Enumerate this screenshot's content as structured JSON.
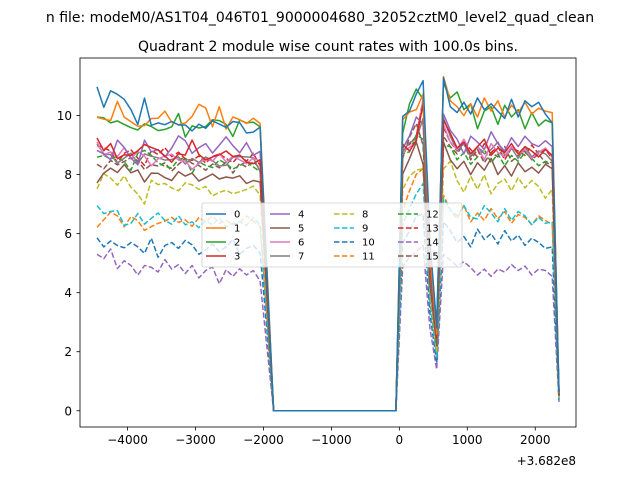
{
  "figure": {
    "suptitle": "n file: modeM0/AS1T04_046T01_9000004680_32052cztM0_level2_quad_clean",
    "offset_text": "+3.682e8"
  },
  "chart_data": {
    "type": "line",
    "title": "Quadrant 2 module wise count rates with 100.0s bins.",
    "xlabel": "",
    "ylabel": "",
    "xlim": [
      -4700,
      2600
    ],
    "ylim": [
      -0.55,
      11.95
    ],
    "xticks": [
      -4000,
      -3000,
      -2000,
      -1000,
      0,
      1000,
      2000
    ],
    "xtick_labels": [
      "−4000",
      "−3000",
      "−2000",
      "−1000",
      "0",
      "1000",
      "2000"
    ],
    "yticks": [
      0,
      2,
      4,
      6,
      8,
      10
    ],
    "ytick_labels": [
      "0",
      "2",
      "4",
      "6",
      "8",
      "10"
    ],
    "x_offset": "+3.682e8",
    "bin_seconds": 100.0,
    "legend": {
      "location": "center",
      "columns": 4
    },
    "x": [
      -4450,
      -4350,
      -4250,
      -4150,
      -4050,
      -3950,
      -3850,
      -3750,
      -3650,
      -3550,
      -3450,
      -3350,
      -3250,
      -3150,
      -3050,
      -2950,
      -2850,
      -2750,
      -2650,
      -2550,
      -2450,
      -2350,
      -2250,
      -2150,
      -2050,
      -1950,
      -1850,
      -150,
      -50,
      50,
      150,
      250,
      350,
      450,
      550,
      650,
      750,
      850,
      950,
      1050,
      1150,
      1250,
      1350,
      1450,
      1550,
      1650,
      1750,
      1850,
      1950,
      2050,
      2150,
      2250,
      2350
    ],
    "series": [
      {
        "name": "0",
        "color": "#1f77b4",
        "dash": "solid",
        "values": [
          10.97,
          10.28,
          10.84,
          10.72,
          10.55,
          10.2,
          9.7,
          10.59,
          9.67,
          9.75,
          9.69,
          9.8,
          9.68,
          9.68,
          9.48,
          9.71,
          9.57,
          9.82,
          9.71,
          9.6,
          9.8,
          9.76,
          9.41,
          9.44,
          9.61,
          4.8,
          0,
          0,
          0,
          9.97,
          10.15,
          10.73,
          11.18,
          5.8,
          2.8,
          11.28,
          10.3,
          10.1,
          10.45,
          10.05,
          10.6,
          10.2,
          10.4,
          10.15,
          9.9,
          10.55,
          9.95,
          10.5,
          10.3,
          10.45,
          10.05,
          9.75,
          0.62
        ]
      },
      {
        "name": "1",
        "color": "#ff7f0e",
        "dash": "solid",
        "values": [
          9.94,
          9.88,
          9.83,
          10.48,
          9.95,
          9.79,
          9.64,
          9.66,
          9.9,
          9.91,
          10.15,
          9.78,
          9.69,
          9.75,
          9.97,
          10.38,
          10.26,
          9.62,
          10.3,
          9.54,
          9.95,
          9.86,
          9.73,
          9.91,
          9.73,
          4.95,
          0,
          0,
          0,
          9.86,
          10.12,
          10.2,
          10.73,
          5.4,
          2.6,
          11.32,
          10.5,
          10.3,
          10.0,
          10.4,
          9.95,
          10.6,
          10.15,
          10.5,
          9.95,
          10.35,
          10.1,
          10.45,
          10.05,
          10.25,
          10.15,
          10.1,
          0.6
        ]
      },
      {
        "name": "2",
        "color": "#2ca02c",
        "dash": "solid",
        "values": [
          9.95,
          9.92,
          9.75,
          9.82,
          9.7,
          9.59,
          9.51,
          9.72,
          9.63,
          9.49,
          9.53,
          9.62,
          10.07,
          9.27,
          9.65,
          9.58,
          9.63,
          9.86,
          9.83,
          9.7,
          9.29,
          9.85,
          9.75,
          9.78,
          9.62,
          4.7,
          0,
          0,
          0,
          9.4,
          10.4,
          10.9,
          10.55,
          5.6,
          2.9,
          11.1,
          10.6,
          10.8,
          10.2,
          10.4,
          9.55,
          10.15,
          10.3,
          9.7,
          10.35,
          9.95,
          10.2,
          9.55,
          10.1,
          9.65,
          9.85,
          9.75,
          0.58
        ]
      },
      {
        "name": "3",
        "color": "#d62728",
        "dash": "solid",
        "values": [
          9.24,
          8.81,
          9.05,
          8.54,
          8.67,
          8.65,
          8.81,
          9.02,
          8.92,
          8.83,
          8.63,
          8.42,
          8.7,
          8.66,
          9.17,
          8.68,
          8.49,
          8.6,
          8.67,
          8.8,
          8.61,
          8.66,
          8.42,
          8.37,
          8.5,
          4.3,
          0,
          0,
          0,
          9.03,
          8.8,
          9.17,
          10.41,
          5.1,
          2.5,
          9.85,
          9.4,
          8.9,
          9.1,
          8.7,
          8.95,
          9.2,
          8.65,
          8.9,
          8.75,
          9.05,
          8.7,
          8.95,
          8.8,
          8.6,
          8.85,
          8.65,
          0.55
        ]
      },
      {
        "name": "4",
        "color": "#9467bd",
        "dash": "solid",
        "values": [
          8.82,
          8.7,
          8.5,
          9.17,
          8.92,
          8.56,
          8.33,
          9.17,
          8.77,
          8.85,
          8.6,
          8.9,
          9.31,
          9.15,
          8.72,
          8.91,
          9.05,
          8.73,
          9.0,
          9.28,
          8.98,
          8.74,
          9.08,
          8.65,
          8.79,
          4.4,
          0,
          0,
          0,
          8.88,
          9.31,
          9.95,
          9.7,
          5.0,
          2.6,
          10.05,
          9.5,
          9.2,
          8.7,
          9.3,
          9.1,
          8.85,
          9.45,
          9.05,
          8.8,
          9.25,
          8.95,
          9.3,
          9.05,
          8.95,
          9.15,
          8.95,
          0.55
        ]
      },
      {
        "name": "5",
        "color": "#8c564b",
        "dash": "solid",
        "values": [
          7.72,
          8.05,
          8.22,
          8.07,
          8.34,
          8.06,
          8.16,
          7.75,
          8.05,
          8.04,
          7.9,
          7.8,
          8.1,
          7.95,
          8.05,
          7.78,
          7.9,
          8.02,
          7.85,
          7.92,
          7.88,
          7.96,
          7.7,
          7.8,
          7.75,
          3.9,
          0,
          0,
          0,
          8.02,
          8.54,
          9.1,
          8.35,
          4.3,
          2.2,
          9.1,
          8.5,
          8.2,
          8.45,
          8.0,
          8.4,
          8.15,
          8.55,
          8.0,
          8.3,
          7.95,
          8.4,
          8.1,
          8.25,
          8.05,
          8.35,
          8.2,
          0.5
        ]
      },
      {
        "name": "6",
        "color": "#e377c2",
        "dash": "solid",
        "values": [
          9.11,
          8.66,
          8.77,
          8.61,
          8.91,
          8.53,
          8.79,
          8.63,
          8.3,
          8.53,
          8.63,
          8.69,
          8.49,
          8.46,
          8.18,
          8.38,
          8.55,
          8.45,
          8.71,
          8.43,
          8.62,
          8.5,
          8.37,
          8.56,
          8.46,
          4.3,
          0,
          0,
          0,
          8.76,
          8.92,
          9.1,
          10.57,
          5.1,
          2.5,
          9.7,
          9.1,
          8.85,
          9.2,
          8.7,
          8.95,
          8.5,
          9.05,
          8.75,
          8.6,
          8.95,
          8.7,
          8.85,
          8.55,
          8.75,
          8.9,
          8.6,
          0.54
        ]
      },
      {
        "name": "7",
        "color": "#7f7f7f",
        "dash": "solid",
        "values": [
          9.04,
          8.7,
          8.67,
          8.39,
          8.56,
          8.73,
          8.38,
          8.7,
          8.62,
          8.57,
          8.49,
          8.51,
          8.6,
          8.36,
          8.55,
          8.41,
          8.6,
          8.47,
          8.29,
          8.32,
          8.59,
          8.61,
          8.6,
          8.57,
          8.1,
          4.2,
          0,
          0,
          0,
          8.78,
          9.08,
          9.21,
          9.9,
          4.9,
          2.4,
          9.9,
          9.3,
          8.8,
          9.05,
          8.6,
          8.95,
          8.7,
          8.85,
          9.1,
          8.65,
          8.9,
          8.55,
          8.95,
          8.6,
          8.8,
          8.7,
          8.45,
          0.52
        ]
      },
      {
        "name": "8",
        "color": "#bcbd22",
        "dash": "dashed",
        "values": [
          7.52,
          8.03,
          7.88,
          7.64,
          7.96,
          7.57,
          7.34,
          7.0,
          7.81,
          7.66,
          7.7,
          7.55,
          7.45,
          7.72,
          7.65,
          7.5,
          7.6,
          7.28,
          7.4,
          7.47,
          7.35,
          7.42,
          7.5,
          7.61,
          7.3,
          3.7,
          0,
          0,
          0,
          7.5,
          7.95,
          8.15,
          8.2,
          4.1,
          2.0,
          8.2,
          8.45,
          7.8,
          7.4,
          7.95,
          7.5,
          8.0,
          7.35,
          7.7,
          7.85,
          7.45,
          7.9,
          7.55,
          7.8,
          7.6,
          7.2,
          7.5,
          0.45
        ]
      },
      {
        "name": "9",
        "color": "#17becf",
        "dash": "dashed",
        "values": [
          6.95,
          6.68,
          6.75,
          6.78,
          6.28,
          6.35,
          6.68,
          6.32,
          6.52,
          6.7,
          6.45,
          6.32,
          6.6,
          6.3,
          6.4,
          6.2,
          6.45,
          6.3,
          6.52,
          6.22,
          6.35,
          6.41,
          6.28,
          6.55,
          6.3,
          3.2,
          0,
          0,
          0,
          6.3,
          6.85,
          7.35,
          7.7,
          3.7,
          1.8,
          7.2,
          6.8,
          6.6,
          6.95,
          6.55,
          6.5,
          6.95,
          6.7,
          6.4,
          6.85,
          6.45,
          6.75,
          6.6,
          6.3,
          6.55,
          6.35,
          6.4,
          0.4
        ]
      },
      {
        "name": "10",
        "color": "#1f77b4",
        "dash": "dashed",
        "values": [
          5.86,
          5.55,
          5.75,
          5.6,
          5.52,
          5.7,
          5.55,
          5.33,
          5.85,
          5.2,
          5.6,
          5.7,
          5.5,
          5.77,
          5.62,
          5.3,
          5.45,
          5.65,
          5.4,
          5.55,
          5.8,
          5.3,
          5.5,
          5.6,
          5.35,
          2.8,
          0,
          0,
          0,
          5.68,
          6.09,
          6.59,
          6.67,
          3.3,
          1.6,
          6.4,
          6.1,
          5.7,
          5.9,
          5.55,
          6.15,
          5.8,
          6.0,
          5.65,
          6.1,
          5.75,
          5.95,
          5.6,
          5.85,
          5.7,
          5.5,
          5.55,
          0.38
        ]
      },
      {
        "name": "11",
        "color": "#ff7f0e",
        "dash": "dashed",
        "values": [
          6.21,
          6.47,
          6.73,
          6.6,
          6.23,
          6.58,
          6.44,
          6.11,
          6.24,
          6.35,
          6.42,
          6.55,
          6.38,
          6.47,
          6.25,
          6.54,
          6.4,
          6.6,
          6.35,
          6.45,
          6.3,
          6.38,
          6.6,
          6.42,
          6.25,
          3.2,
          0,
          0,
          0,
          6.8,
          7.45,
          8.01,
          8.2,
          3.8,
          1.9,
          7.3,
          6.8,
          6.5,
          6.95,
          6.4,
          6.7,
          6.45,
          6.85,
          6.5,
          6.75,
          6.35,
          6.65,
          6.55,
          6.3,
          6.6,
          6.45,
          6.3,
          0.4
        ]
      },
      {
        "name": "12",
        "color": "#2ca02c",
        "dash": "dashed",
        "values": [
          8.59,
          8.65,
          8.53,
          8.62,
          8.43,
          8.15,
          8.72,
          8.82,
          8.65,
          8.4,
          8.28,
          8.22,
          8.52,
          8.56,
          8.05,
          8.43,
          8.31,
          8.24,
          8.5,
          8.37,
          8.19,
          8.3,
          8.44,
          8.26,
          8.1,
          4.1,
          0,
          0,
          0,
          8.7,
          8.77,
          9.35,
          9.2,
          4.5,
          2.3,
          9.0,
          8.95,
          8.5,
          8.75,
          8.35,
          8.6,
          8.85,
          8.4,
          8.7,
          8.3,
          8.65,
          8.45,
          8.75,
          8.55,
          8.3,
          8.45,
          8.4,
          0.52
        ]
      },
      {
        "name": "13",
        "color": "#d62728",
        "dash": "dashed",
        "values": [
          8.98,
          8.92,
          8.79,
          8.4,
          8.72,
          8.84,
          8.56,
          8.31,
          8.82,
          8.68,
          8.91,
          8.61,
          8.76,
          8.53,
          8.48,
          8.63,
          8.39,
          8.61,
          8.7,
          8.55,
          8.41,
          8.66,
          8.45,
          8.72,
          8.3,
          4.2,
          0,
          0,
          0,
          8.95,
          9.02,
          9.3,
          10.55,
          5.0,
          2.4,
          9.6,
          9.1,
          8.8,
          9.15,
          8.85,
          8.6,
          9.05,
          8.75,
          8.95,
          8.5,
          8.9,
          8.8,
          8.65,
          9.0,
          8.7,
          8.85,
          8.55,
          0.53
        ]
      },
      {
        "name": "14",
        "color": "#9467bd",
        "dash": "dashed",
        "values": [
          5.3,
          5.15,
          5.48,
          4.82,
          5.08,
          4.92,
          4.6,
          4.92,
          4.86,
          4.7,
          5.12,
          4.8,
          4.95,
          4.65,
          4.92,
          4.5,
          4.75,
          4.87,
          4.3,
          4.78,
          4.55,
          4.81,
          4.6,
          4.75,
          4.4,
          2.2,
          0,
          0,
          0,
          4.9,
          5.2,
          5.4,
          5.6,
          2.8,
          1.4,
          5.3,
          5.1,
          4.9,
          5.05,
          4.85,
          4.6,
          4.8,
          4.55,
          4.8,
          4.7,
          4.95,
          4.75,
          4.9,
          4.6,
          4.8,
          4.75,
          4.55,
          0.3
        ]
      },
      {
        "name": "15",
        "color": "#8c564b",
        "dash": "dashed",
        "values": [
          8.35,
          8.2,
          8.48,
          8.33,
          8.44,
          8.58,
          8.47,
          8.17,
          8.34,
          8.29,
          8.4,
          8.12,
          8.35,
          8.55,
          8.38,
          8.31,
          8.15,
          8.36,
          8.23,
          8.42,
          8.05,
          8.38,
          8.26,
          8.44,
          8.2,
          4.1,
          0,
          0,
          0,
          8.55,
          9.27,
          9.73,
          9.0,
          4.4,
          2.2,
          9.3,
          8.95,
          8.7,
          9.05,
          8.5,
          8.85,
          8.4,
          8.75,
          8.6,
          8.95,
          8.45,
          8.65,
          8.8,
          8.5,
          8.7,
          8.4,
          8.35,
          0.5
        ]
      }
    ]
  }
}
